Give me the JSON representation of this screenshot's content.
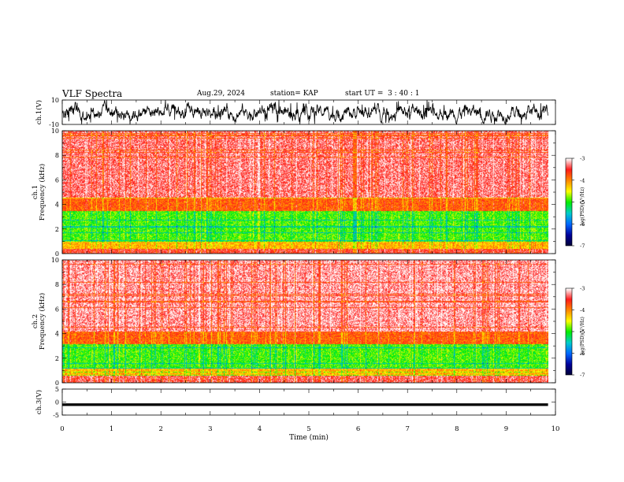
{
  "header": {
    "title": "VLF Spectra",
    "date": "Aug.29, 2024",
    "station": "station= KAP",
    "start": "start UT =  3 : 40 : 1"
  },
  "chart_data": [
    {
      "type": "line",
      "panel": "ch1-waveform",
      "ylabel": "ch.1(V)",
      "ylim": [
        -10,
        10
      ],
      "yticks": [
        "10",
        "-10"
      ],
      "xlim": [
        0,
        10
      ],
      "x_extent_min": 9.85,
      "description_values": {
        "baseline": 0,
        "typical_amplitude": 5
      },
      "series": [
        {
          "values": "noisy waveform, mean ~0 V, peaks near ±10 V",
          "color": "#000000"
        }
      ]
    },
    {
      "type": "heatmap",
      "panel": "ch1-spectrogram",
      "ylabel": "ch.1\nFrequency (kHz)",
      "ylabel_lines": [
        "ch.1",
        "Frequency (kHz)"
      ],
      "ylim": [
        0,
        10
      ],
      "yticks": [
        "0",
        "2",
        "4",
        "6",
        "8",
        "10"
      ],
      "xlim": [
        0,
        10
      ],
      "x_extent_min": 9.85,
      "bands": [
        {
          "from_khz": 0,
          "to_khz": 0.4,
          "level": -3.5
        },
        {
          "from_khz": 0.4,
          "to_khz": 1.0,
          "level": -4.2
        },
        {
          "from_khz": 1.0,
          "to_khz": 3.5,
          "level": -4.9
        },
        {
          "from_khz": 3.5,
          "to_khz": 4.6,
          "level": -3.8
        },
        {
          "from_khz": 4.6,
          "to_khz": 10,
          "level": -3.3
        }
      ]
    },
    {
      "type": "heatmap",
      "panel": "ch2-spectrogram",
      "ylabel": "ch.2\nFrequency (kHz)",
      "ylabel_lines": [
        "ch.2",
        "Frequency (kHz)"
      ],
      "ylim": [
        0,
        10
      ],
      "yticks": [
        "0",
        "2",
        "4",
        "6",
        "8",
        "10"
      ],
      "xlim": [
        0,
        10
      ],
      "x_extent_min": 9.85,
      "bands": [
        {
          "from_khz": 0,
          "to_khz": 0.6,
          "level": -3.4
        },
        {
          "from_khz": 0.6,
          "to_khz": 1.2,
          "level": -4.2
        },
        {
          "from_khz": 1.2,
          "to_khz": 3.2,
          "level": -4.9
        },
        {
          "from_khz": 3.2,
          "to_khz": 4.2,
          "level": -3.8
        },
        {
          "from_khz": 4.2,
          "to_khz": 10,
          "level": -3.2
        }
      ]
    },
    {
      "type": "line",
      "panel": "ch3-waveform",
      "ylabel": "ch.3(V)",
      "ylim": [
        -5,
        5
      ],
      "yticks": [
        "5",
        "0",
        "-5"
      ],
      "xlim": [
        0,
        10
      ],
      "x_extent_min": 9.85,
      "series": [
        {
          "values": "dense oscillation around -1 V",
          "center": -1,
          "amplitude": 0.5,
          "color": "#000000"
        }
      ],
      "xlabel": "Time (min)",
      "xticks": [
        "0",
        "1",
        "2",
        "3",
        "4",
        "5",
        "6",
        "7",
        "8",
        "9",
        "10"
      ]
    }
  ],
  "colorbar": {
    "label": "log(PSD)(V²/Hz)",
    "range": [
      -7,
      -3
    ],
    "ticks": [
      "-3",
      "-4",
      "-5",
      "-6",
      "-7"
    ],
    "stops": [
      "#ffffff",
      "#ff1a1a",
      "#ff8800",
      "#ffff00",
      "#00ee00",
      "#00cccc",
      "#0066ff",
      "#000099",
      "#000033"
    ]
  }
}
